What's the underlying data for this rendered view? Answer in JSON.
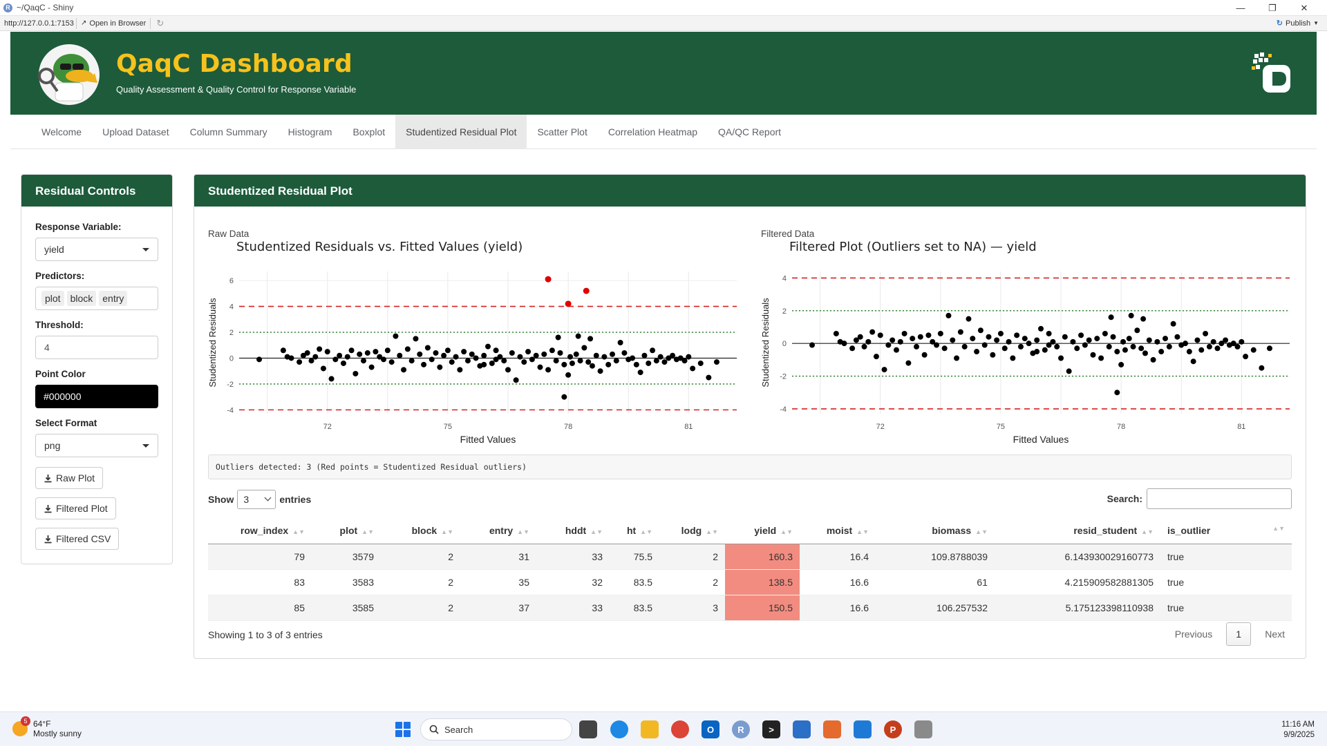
{
  "window": {
    "title": "~/QaqC - Shiny",
    "url": "http://127.0.0.1:7153",
    "open_in_browser": "Open in Browser",
    "publish": "Publish"
  },
  "header": {
    "title": "QaqC Dashboard",
    "subtitle": "Quality Assessment & Quality Control for Response Variable"
  },
  "nav": {
    "tabs": [
      {
        "label": "Welcome"
      },
      {
        "label": "Upload Dataset"
      },
      {
        "label": "Column Summary"
      },
      {
        "label": "Histogram"
      },
      {
        "label": "Boxplot"
      },
      {
        "label": "Studentized Residual Plot"
      },
      {
        "label": "Scatter Plot"
      },
      {
        "label": "Correlation Heatmap"
      },
      {
        "label": "QA/QC Report"
      }
    ],
    "active": "Studentized Residual Plot"
  },
  "sidebar": {
    "title": "Residual Controls",
    "response_label": "Response Variable:",
    "response_value": "yield",
    "predictors_label": "Predictors:",
    "predictors": [
      "plot",
      "block",
      "entry"
    ],
    "threshold_label": "Threshold:",
    "threshold_value": "4",
    "color_label": "Point Color",
    "color_value": "#000000",
    "format_label": "Select Format",
    "format_value": "png",
    "buttons": {
      "raw_plot": "Raw Plot",
      "filtered_plot": "Filtered Plot",
      "filtered_csv": "Filtered CSV"
    }
  },
  "main": {
    "title": "Studentized Residual Plot",
    "raw_caption": "Raw Data",
    "filtered_caption": "Filtered Data",
    "outlier_note": "Outliers detected: 3 (Red points = Studentized Residual outliers)",
    "table": {
      "show_label": "Show",
      "entries_label": "entries",
      "length_value": "3",
      "search_label": "Search:",
      "columns": [
        "row_index",
        "plot",
        "block",
        "entry",
        "hddt",
        "ht",
        "lodg",
        "yield",
        "moist",
        "biomass",
        "resid_student",
        "is_outlier"
      ],
      "rows": [
        [
          "79",
          "3579",
          "2",
          "31",
          "33",
          "75.5",
          "2",
          "160.3",
          "16.4",
          "109.8788039",
          "6.143930029160773",
          "true"
        ],
        [
          "83",
          "3583",
          "2",
          "35",
          "32",
          "83.5",
          "2",
          "138.5",
          "16.6",
          "61",
          "4.215909582881305",
          "true"
        ],
        [
          "85",
          "3585",
          "2",
          "37",
          "33",
          "83.5",
          "3",
          "150.5",
          "16.6",
          "106.257532",
          "5.175123398110938",
          "true"
        ]
      ],
      "info": "Showing 1 to 3 of 3 entries",
      "previous": "Previous",
      "page": "1",
      "next": "Next"
    }
  },
  "chart_data": [
    {
      "type": "scatter",
      "title": "Studentized Residuals vs. Fitted Values (yield)",
      "xlabel": "Fitted Values",
      "ylabel": "Studentized Residuals",
      "xticks": [
        72,
        75,
        78,
        81
      ],
      "yticks": [
        -4,
        -2,
        0,
        2,
        4,
        6
      ],
      "xlim": [
        69.8,
        82.2
      ],
      "ylim": [
        -4.3,
        6.7
      ],
      "reference_lines": {
        "zero": 0,
        "inner": [
          -2,
          2
        ],
        "threshold": [
          -4,
          4
        ]
      },
      "point_color": "#000000",
      "outlier_color": "#e00000",
      "outliers": [
        [
          77.5,
          6.1
        ],
        [
          78.0,
          4.2
        ],
        [
          78.45,
          5.2
        ]
      ],
      "points": [
        [
          70.3,
          -0.1
        ],
        [
          70.9,
          0.6
        ],
        [
          71.0,
          0.1
        ],
        [
          71.1,
          0.0
        ],
        [
          71.3,
          -0.3
        ],
        [
          71.4,
          0.2
        ],
        [
          71.5,
          0.4
        ],
        [
          71.6,
          -0.2
        ],
        [
          71.7,
          0.1
        ],
        [
          71.8,
          0.7
        ],
        [
          71.9,
          -0.8
        ],
        [
          72.0,
          0.5
        ],
        [
          72.1,
          -1.6
        ],
        [
          72.2,
          -0.1
        ],
        [
          72.3,
          0.2
        ],
        [
          72.4,
          -0.4
        ],
        [
          72.5,
          0.1
        ],
        [
          72.6,
          0.6
        ],
        [
          72.7,
          -1.2
        ],
        [
          72.8,
          0.3
        ],
        [
          72.9,
          -0.2
        ],
        [
          73.0,
          0.4
        ],
        [
          73.1,
          -0.7
        ],
        [
          73.2,
          0.5
        ],
        [
          73.3,
          0.1
        ],
        [
          73.4,
          -0.1
        ],
        [
          73.5,
          0.6
        ],
        [
          73.6,
          -0.3
        ],
        [
          73.7,
          1.7
        ],
        [
          73.8,
          0.2
        ],
        [
          73.9,
          -0.9
        ],
        [
          74.0,
          0.7
        ],
        [
          74.1,
          -0.2
        ],
        [
          74.2,
          1.5
        ],
        [
          74.3,
          0.3
        ],
        [
          74.4,
          -0.5
        ],
        [
          74.5,
          0.8
        ],
        [
          74.6,
          -0.1
        ],
        [
          74.7,
          0.4
        ],
        [
          74.8,
          -0.7
        ],
        [
          74.9,
          0.2
        ],
        [
          75.0,
          0.6
        ],
        [
          75.1,
          -0.3
        ],
        [
          75.2,
          0.1
        ],
        [
          75.3,
          -0.9
        ],
        [
          75.4,
          0.5
        ],
        [
          75.5,
          -0.2
        ],
        [
          75.6,
          0.3
        ],
        [
          75.7,
          0.0
        ],
        [
          75.8,
          -0.6
        ],
        [
          75.9,
          0.2
        ],
        [
          76.0,
          0.9
        ],
        [
          76.1,
          -0.4
        ],
        [
          76.2,
          0.6
        ],
        [
          76.3,
          0.1
        ],
        [
          76.4,
          -0.2
        ],
        [
          76.5,
          -0.9
        ],
        [
          76.6,
          0.4
        ],
        [
          76.7,
          -1.7
        ],
        [
          76.8,
          0.1
        ],
        [
          76.9,
          -0.3
        ],
        [
          77.0,
          0.5
        ],
        [
          77.1,
          -0.1
        ],
        [
          77.2,
          0.2
        ],
        [
          77.3,
          -0.7
        ],
        [
          77.4,
          0.3
        ],
        [
          77.5,
          -0.9
        ],
        [
          77.6,
          0.6
        ],
        [
          77.7,
          -0.2
        ],
        [
          77.75,
          1.6
        ],
        [
          77.8,
          0.4
        ],
        [
          77.9,
          -0.5
        ],
        [
          78.0,
          -1.3
        ],
        [
          78.05,
          0.1
        ],
        [
          78.1,
          -0.4
        ],
        [
          78.2,
          0.3
        ],
        [
          78.25,
          1.7
        ],
        [
          78.3,
          -0.2
        ],
        [
          78.4,
          0.8
        ],
        [
          78.5,
          -0.3
        ],
        [
          78.55,
          1.5
        ],
        [
          78.6,
          -0.6
        ],
        [
          78.7,
          0.2
        ],
        [
          78.8,
          -1.0
        ],
        [
          78.9,
          0.1
        ],
        [
          79.0,
          -0.5
        ],
        [
          79.1,
          0.3
        ],
        [
          79.2,
          -0.2
        ],
        [
          79.3,
          1.2
        ],
        [
          79.4,
          0.4
        ],
        [
          79.5,
          -0.1
        ],
        [
          79.6,
          0.0
        ],
        [
          79.7,
          -0.5
        ],
        [
          79.8,
          -1.1
        ],
        [
          79.9,
          0.2
        ],
        [
          80.0,
          -0.4
        ],
        [
          80.1,
          0.6
        ],
        [
          80.2,
          -0.2
        ],
        [
          80.3,
          0.1
        ],
        [
          80.4,
          -0.3
        ],
        [
          80.5,
          0.0
        ],
        [
          80.6,
          0.2
        ],
        [
          80.7,
          -0.1
        ],
        [
          80.8,
          0.0
        ],
        [
          80.9,
          -0.2
        ],
        [
          81.0,
          0.1
        ],
        [
          81.1,
          -0.8
        ],
        [
          81.3,
          -0.4
        ],
        [
          81.5,
          -1.5
        ],
        [
          81.7,
          -0.3
        ],
        [
          77.9,
          -3.0
        ],
        [
          75.9,
          -0.5
        ],
        [
          76.2,
          -0.1
        ]
      ]
    },
    {
      "type": "scatter",
      "title": "Filtered Plot (Outliers set to NA) — yield",
      "xlabel": "Fitted Values",
      "ylabel": "Studentized Residuals",
      "xticks": [
        72,
        75,
        78,
        81
      ],
      "yticks": [
        -4,
        -2,
        0,
        2,
        4
      ],
      "xlim": [
        69.8,
        82.2
      ],
      "ylim": [
        -4.3,
        4.4
      ],
      "reference_lines": {
        "zero": 0,
        "inner": [
          -2,
          2
        ],
        "threshold": [
          -4,
          4
        ]
      },
      "point_color": "#000000",
      "points": [
        [
          70.3,
          -0.1
        ],
        [
          70.9,
          0.6
        ],
        [
          71.0,
          0.1
        ],
        [
          71.1,
          0.0
        ],
        [
          71.3,
          -0.3
        ],
        [
          71.4,
          0.2
        ],
        [
          71.5,
          0.4
        ],
        [
          71.6,
          -0.2
        ],
        [
          71.7,
          0.1
        ],
        [
          71.8,
          0.7
        ],
        [
          71.9,
          -0.8
        ],
        [
          72.0,
          0.5
        ],
        [
          72.1,
          -1.6
        ],
        [
          72.2,
          -0.1
        ],
        [
          72.3,
          0.2
        ],
        [
          72.4,
          -0.4
        ],
        [
          72.5,
          0.1
        ],
        [
          72.6,
          0.6
        ],
        [
          72.7,
          -1.2
        ],
        [
          72.8,
          0.3
        ],
        [
          72.9,
          -0.2
        ],
        [
          73.0,
          0.4
        ],
        [
          73.1,
          -0.7
        ],
        [
          73.2,
          0.5
        ],
        [
          73.3,
          0.1
        ],
        [
          73.4,
          -0.1
        ],
        [
          73.5,
          0.6
        ],
        [
          73.6,
          -0.3
        ],
        [
          73.7,
          1.7
        ],
        [
          73.8,
          0.2
        ],
        [
          73.9,
          -0.9
        ],
        [
          74.0,
          0.7
        ],
        [
          74.1,
          -0.2
        ],
        [
          74.2,
          1.5
        ],
        [
          74.3,
          0.3
        ],
        [
          74.4,
          -0.5
        ],
        [
          74.5,
          0.8
        ],
        [
          74.6,
          -0.1
        ],
        [
          74.7,
          0.4
        ],
        [
          74.8,
          -0.7
        ],
        [
          74.9,
          0.2
        ],
        [
          75.0,
          0.6
        ],
        [
          75.1,
          -0.3
        ],
        [
          75.2,
          0.1
        ],
        [
          75.3,
          -0.9
        ],
        [
          75.4,
          0.5
        ],
        [
          75.5,
          -0.2
        ],
        [
          75.6,
          0.3
        ],
        [
          75.7,
          0.0
        ],
        [
          75.8,
          -0.6
        ],
        [
          75.9,
          0.2
        ],
        [
          76.0,
          0.9
        ],
        [
          76.1,
          -0.4
        ],
        [
          76.2,
          0.6
        ],
        [
          76.3,
          0.1
        ],
        [
          76.4,
          -0.2
        ],
        [
          76.5,
          -0.9
        ],
        [
          76.6,
          0.4
        ],
        [
          76.7,
          -1.7
        ],
        [
          76.8,
          0.1
        ],
        [
          76.9,
          -0.3
        ],
        [
          77.0,
          0.5
        ],
        [
          77.1,
          -0.1
        ],
        [
          77.2,
          0.2
        ],
        [
          77.3,
          -0.7
        ],
        [
          77.4,
          0.3
        ],
        [
          77.5,
          -0.9
        ],
        [
          77.6,
          0.6
        ],
        [
          77.7,
          -0.2
        ],
        [
          77.75,
          1.6
        ],
        [
          77.8,
          0.4
        ],
        [
          77.9,
          -0.5
        ],
        [
          78.0,
          -1.3
        ],
        [
          78.05,
          0.1
        ],
        [
          78.1,
          -0.4
        ],
        [
          78.2,
          0.3
        ],
        [
          78.25,
          1.7
        ],
        [
          78.3,
          -0.2
        ],
        [
          78.4,
          0.8
        ],
        [
          78.5,
          -0.3
        ],
        [
          78.55,
          1.5
        ],
        [
          78.6,
          -0.6
        ],
        [
          78.7,
          0.2
        ],
        [
          78.8,
          -1.0
        ],
        [
          78.9,
          0.1
        ],
        [
          79.0,
          -0.5
        ],
        [
          79.1,
          0.3
        ],
        [
          79.2,
          -0.2
        ],
        [
          79.3,
          1.2
        ],
        [
          79.4,
          0.4
        ],
        [
          79.5,
          -0.1
        ],
        [
          79.6,
          0.0
        ],
        [
          79.7,
          -0.5
        ],
        [
          79.8,
          -1.1
        ],
        [
          79.9,
          0.2
        ],
        [
          80.0,
          -0.4
        ],
        [
          80.1,
          0.6
        ],
        [
          80.2,
          -0.2
        ],
        [
          80.3,
          0.1
        ],
        [
          80.4,
          -0.3
        ],
        [
          80.5,
          0.0
        ],
        [
          80.6,
          0.2
        ],
        [
          80.7,
          -0.1
        ],
        [
          80.8,
          0.0
        ],
        [
          80.9,
          -0.2
        ],
        [
          81.0,
          0.1
        ],
        [
          81.1,
          -0.8
        ],
        [
          81.3,
          -0.4
        ],
        [
          81.5,
          -1.5
        ],
        [
          81.7,
          -0.3
        ],
        [
          77.9,
          -3.0
        ],
        [
          75.9,
          -0.5
        ],
        [
          76.2,
          -0.1
        ]
      ]
    }
  ],
  "taskbar": {
    "weather_temp": "64°F",
    "weather_desc": "Mostly sunny",
    "weather_badge": "5",
    "search_placeholder": "Search",
    "time": "11:16 AM",
    "date": "9/9/2025"
  }
}
